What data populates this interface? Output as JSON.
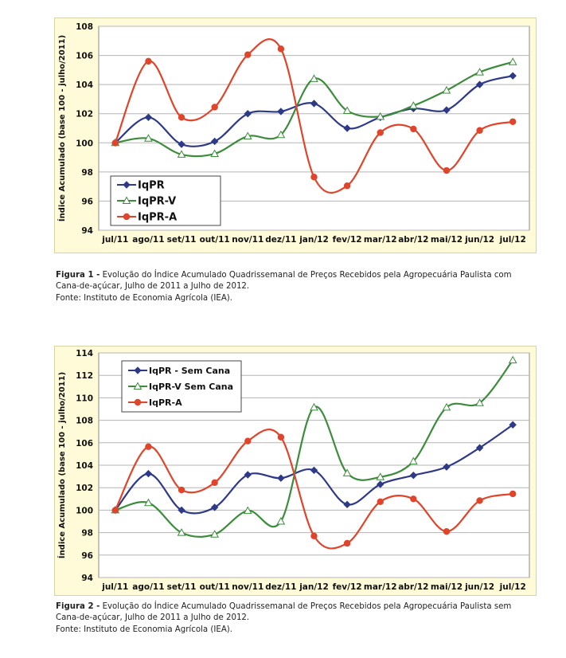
{
  "chart_data": [
    {
      "type": "line",
      "categories": [
        "jul/11",
        "ago/11",
        "set/11",
        "out/11",
        "nov/11",
        "dez/11",
        "jan/12",
        "fev/12",
        "mar/12",
        "abr/12",
        "mai/12",
        "jun/12",
        "jul/12"
      ],
      "ylabel": "Índice Acumulado (base 100 - julho/2011)",
      "ylim": [
        94,
        108
      ],
      "yticks": [
        94,
        96,
        98,
        100,
        102,
        104,
        106,
        108
      ],
      "grid": true,
      "legend_position": "bottom-left",
      "series": [
        {
          "name": "IqPR",
          "color": "#2e3a87",
          "marker": "diamond",
          "values": [
            100.0,
            101.75,
            99.9,
            100.1,
            102.0,
            102.15,
            102.7,
            101.0,
            101.75,
            102.35,
            102.25,
            104.0,
            104.6
          ]
        },
        {
          "name": "IqPR-V",
          "color": "#3c8c3c",
          "marker": "triangle-open",
          "values": [
            100.0,
            100.3,
            99.2,
            99.25,
            100.45,
            100.55,
            104.4,
            102.2,
            101.8,
            102.55,
            103.6,
            104.85,
            105.55
          ]
        },
        {
          "name": "IqPR-A",
          "color": "#e0442a",
          "marker": "circle",
          "values": [
            100.0,
            105.6,
            101.75,
            102.45,
            106.05,
            106.45,
            97.65,
            97.05,
            100.7,
            100.95,
            98.1,
            100.85,
            101.45
          ]
        }
      ]
    },
    {
      "type": "line",
      "categories": [
        "jul/11",
        "ago/11",
        "set/11",
        "out/11",
        "nov/11",
        "dez/11",
        "jan/12",
        "fev/12",
        "mar/12",
        "abr/12",
        "mai/12",
        "jun/12",
        "jul/12"
      ],
      "ylabel": "Índice Acumulado (base 100 - julho/2011)",
      "ylim": [
        94,
        114
      ],
      "yticks": [
        94,
        96,
        98,
        100,
        102,
        104,
        106,
        108,
        110,
        112,
        114
      ],
      "grid": true,
      "legend_position": "top-left",
      "series": [
        {
          "name": "IqPR - Sem Cana",
          "color": "#2e3a87",
          "marker": "diamond",
          "values": [
            100.0,
            103.25,
            100.0,
            100.25,
            103.15,
            102.85,
            103.55,
            100.5,
            102.3,
            103.1,
            103.85,
            105.55,
            107.6
          ]
        },
        {
          "name": "IqPR-V Sem Cana",
          "color": "#3c8c3c",
          "marker": "triangle-open",
          "values": [
            100.0,
            100.65,
            98.0,
            97.85,
            99.95,
            99.0,
            109.15,
            103.3,
            102.95,
            104.35,
            109.15,
            109.55,
            113.35
          ]
        },
        {
          "name": "IqPR-A",
          "color": "#e0442a",
          "marker": "circle",
          "values": [
            100.0,
            105.65,
            101.8,
            102.45,
            106.15,
            106.5,
            97.7,
            97.05,
            100.75,
            101.0,
            98.1,
            100.85,
            101.45
          ]
        }
      ]
    }
  ],
  "captions": [
    {
      "label": "Figura 1 -",
      "text": "Evolução do Índice Acumulado Quadrissemanal de Preços Recebidos pela Agropecuária Paulista com Cana-de-açúcar, Julho de 2011 a Julho de 2012.",
      "source": "Fonte: Instituto de Economia Agrícola (IEA)."
    },
    {
      "label": "Figura 2 -",
      "text": "Evolução do Índice Acumulado Quadrissemanal de Preços Recebidos pela Agropecuária Paulista sem Cana-de-açúcar, Julho de 2011 a Julho de 2012.",
      "source": "Fonte: Instituto de Economia Agrícola (IEA)."
    }
  ]
}
